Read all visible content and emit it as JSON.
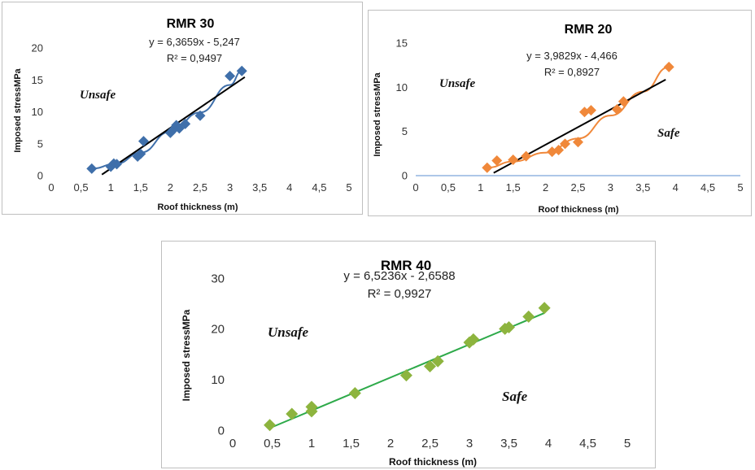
{
  "chart_data": [
    {
      "type": "scatter",
      "title": "RMR 30",
      "xlabel": "Roof thickness (m)",
      "ylabel": "Imposed stressMPa",
      "xlim": [
        0,
        5
      ],
      "ylim": [
        0,
        20
      ],
      "xticks": [
        "0",
        "0,5",
        "1",
        "1,5",
        "2",
        "2,5",
        "3",
        "3,5",
        "4",
        "4,5",
        "5"
      ],
      "yticks": [
        "0",
        "5",
        "10",
        "15",
        "20"
      ],
      "equation": "y = 6,3659x - 5,247",
      "r2": "R² = 0,9497",
      "regions": [
        {
          "label": "Unsafe"
        }
      ],
      "color": "#3f6faa",
      "trend_color": "#000000",
      "smooth_color": "#3f6faa",
      "trend": {
        "slope": 6.3659,
        "intercept": -5.247,
        "x_range": [
          0.85,
          3.25
        ]
      },
      "points": [
        [
          0.68,
          1.1
        ],
        [
          1.0,
          1.4
        ],
        [
          1.05,
          1.9
        ],
        [
          1.1,
          1.8
        ],
        [
          1.45,
          3.0
        ],
        [
          1.5,
          3.4
        ],
        [
          1.55,
          5.4
        ],
        [
          2.0,
          6.7
        ],
        [
          2.05,
          7.2
        ],
        [
          2.1,
          7.9
        ],
        [
          2.15,
          7.4
        ],
        [
          2.25,
          8.1
        ],
        [
          2.5,
          9.4
        ],
        [
          3.0,
          15.6
        ],
        [
          3.2,
          16.4
        ]
      ],
      "smooth_curve": [
        [
          0.68,
          1.1
        ],
        [
          1.1,
          1.9
        ],
        [
          1.5,
          3.6
        ],
        [
          2.0,
          6.9
        ],
        [
          2.5,
          9.9
        ],
        [
          3.0,
          14.2
        ],
        [
          3.2,
          16.4
        ]
      ]
    },
    {
      "type": "scatter",
      "title": "RMR 20",
      "xlabel": "Roof thickness (m)",
      "ylabel": "Imposed stressMPa",
      "xlim": [
        0,
        5
      ],
      "ylim": [
        0,
        15
      ],
      "xticks": [
        "0",
        "0,5",
        "1",
        "1,5",
        "2",
        "2,5",
        "3",
        "3,5",
        "4",
        "4,5",
        "5"
      ],
      "yticks": [
        "0",
        "5",
        "10",
        "15"
      ],
      "equation": "y = 3,9829x - 4,466",
      "r2": "R² = 0,8927",
      "regions": [
        {
          "label": "Unsafe"
        },
        {
          "label": "Safe"
        }
      ],
      "color": "#f0883a",
      "trend_color": "#000000",
      "smooth_color": "#f0883a",
      "trend": {
        "slope": 3.9829,
        "intercept": -4.466,
        "x_range": [
          1.2,
          3.85
        ]
      },
      "points": [
        [
          1.1,
          0.9
        ],
        [
          1.25,
          1.7
        ],
        [
          1.5,
          1.8
        ],
        [
          1.7,
          2.2
        ],
        [
          2.1,
          2.7
        ],
        [
          2.2,
          2.9
        ],
        [
          2.3,
          3.6
        ],
        [
          2.5,
          3.8
        ],
        [
          2.6,
          7.2
        ],
        [
          2.7,
          7.4
        ],
        [
          3.1,
          7.5
        ],
        [
          3.2,
          8.4
        ],
        [
          3.9,
          12.3
        ]
      ],
      "smooth_curve": [
        [
          1.1,
          0.9
        ],
        [
          1.5,
          1.6
        ],
        [
          2.0,
          2.6
        ],
        [
          2.5,
          4.2
        ],
        [
          3.0,
          6.8
        ],
        [
          3.5,
          9.5
        ],
        [
          3.9,
          12.3
        ]
      ]
    },
    {
      "type": "scatter",
      "title": "RMR 40",
      "xlabel": "Roof thickness (m)",
      "ylabel": "Imposed stressMPa",
      "xlim": [
        0,
        5
      ],
      "ylim": [
        0,
        30
      ],
      "xticks": [
        "0",
        "0,5",
        "1",
        "1,5",
        "2",
        "2,5",
        "3",
        "3,5",
        "4",
        "4,5",
        "5"
      ],
      "yticks": [
        "0",
        "10",
        "20",
        "30"
      ],
      "equation": "y = 6,5236x - 2,6588",
      "r2": "R² = 0,9927",
      "regions": [
        {
          "label": "Unsafe"
        },
        {
          "label": "Safe"
        }
      ],
      "color": "#8db43e",
      "trend_color": "#2eaa4a",
      "trend": {
        "slope": 6.5236,
        "intercept": -2.6588,
        "x_range": [
          0.5,
          3.95
        ]
      },
      "points": [
        [
          0.47,
          1.0
        ],
        [
          0.75,
          3.2
        ],
        [
          1.0,
          4.6
        ],
        [
          1.0,
          3.7
        ],
        [
          1.55,
          7.3
        ],
        [
          2.2,
          10.8
        ],
        [
          2.5,
          12.6
        ],
        [
          2.6,
          13.6
        ],
        [
          3.0,
          17.3
        ],
        [
          3.05,
          17.9
        ],
        [
          3.45,
          20.0
        ],
        [
          3.5,
          20.3
        ],
        [
          3.75,
          22.4
        ],
        [
          3.95,
          24.1
        ]
      ]
    }
  ]
}
